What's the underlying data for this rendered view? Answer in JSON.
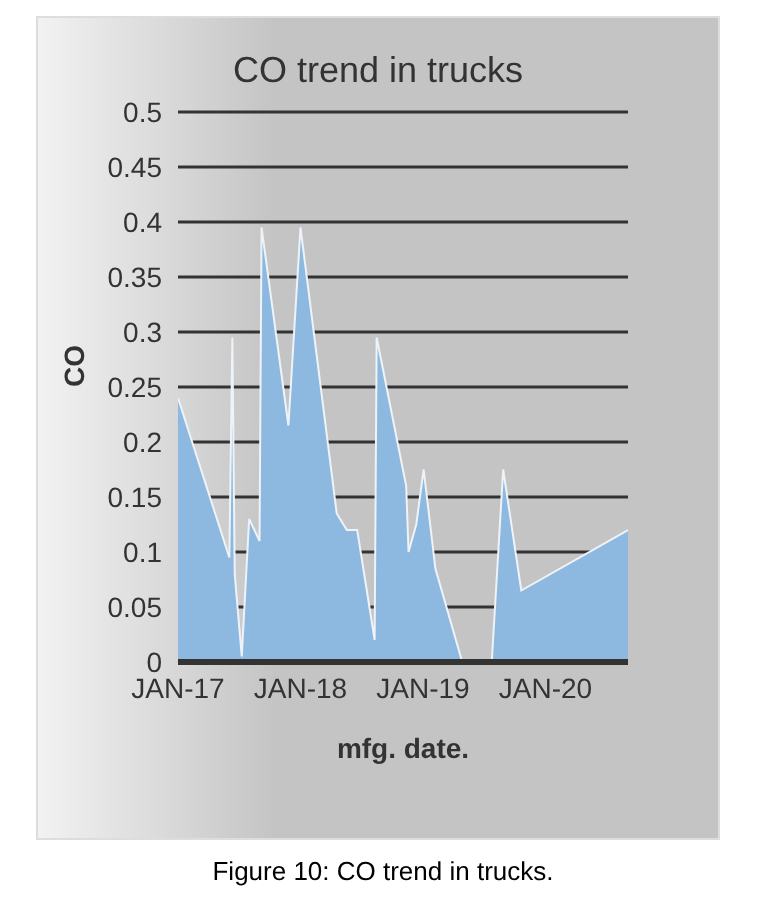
{
  "chart_data": {
    "type": "area",
    "title": "CO trend in trucks",
    "xlabel": "mfg. date.",
    "ylabel": "CO",
    "color": "#8db8df",
    "x": [
      "2017-01-01",
      "2017-06-03",
      "2017-06-12",
      "2017-06-19",
      "2017-07-10",
      "2017-08-01",
      "2017-09-01",
      "2017-09-07",
      "2017-11-26",
      "2018-01-01",
      "2018-04-19",
      "2018-05-19",
      "2018-06-19",
      "2018-08-10",
      "2018-08-16",
      "2018-11-12",
      "2018-11-19",
      "2018-12-12",
      "2019-01-03",
      "2019-02-07",
      "2019-04-28",
      "2019-07-25",
      "2019-08-28",
      "2019-10-21",
      "2020-09-03"
    ],
    "values": [
      0.24,
      0.095,
      0.295,
      0.08,
      0.005,
      0.13,
      0.11,
      0.395,
      0.215,
      0.395,
      0.135,
      0.12,
      0.12,
      0.02,
      0.295,
      0.16,
      0.1,
      0.125,
      0.175,
      0.085,
      0,
      0,
      0.175,
      0.065,
      0.12
    ],
    "xlim": [
      "2017-01-01",
      "2020-09-03"
    ],
    "xticks": [
      {
        "value": "2017-01-01",
        "label": "JAN-17"
      },
      {
        "value": "2018-01-01",
        "label": "JAN-18"
      },
      {
        "value": "2019-01-01",
        "label": "JAN-19"
      },
      {
        "value": "2020-01-01",
        "label": "JAN-20"
      }
    ],
    "ylim": [
      0,
      0.5
    ],
    "yticks": [
      0,
      0.05,
      0.1,
      0.15,
      0.2,
      0.25,
      0.3,
      0.35,
      0.4,
      0.45,
      0.5
    ],
    "grid": "y",
    "legend": false,
    "annotations": [
      "Figure 10: CO trend in trucks."
    ]
  }
}
